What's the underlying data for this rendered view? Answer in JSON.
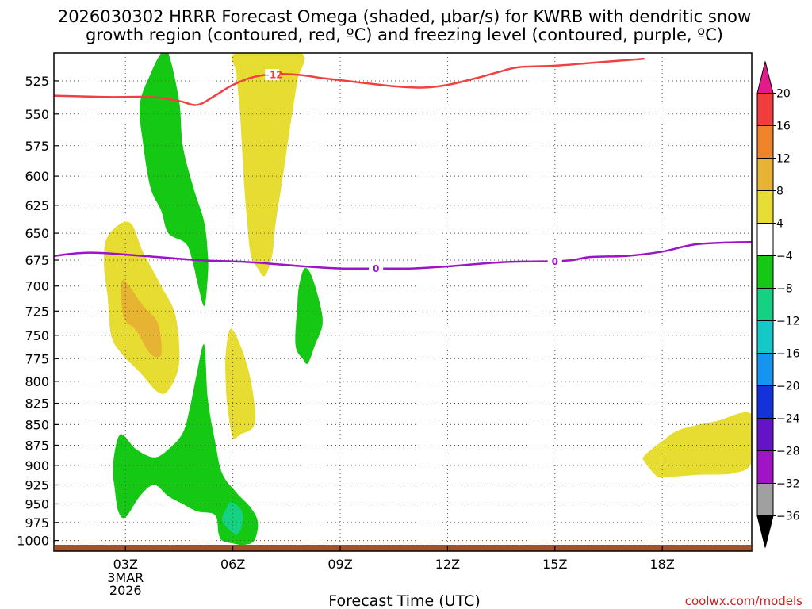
{
  "title_line1": "2026030302 HRRR Forecast Omega (shaded, μbar/s) for KWRB with dendritic snow",
  "title_line2": "growth region (contoured, red, ºC) and freezing level (contoured, purple, ºC)",
  "credit": "coolwx.com/models",
  "chart_data": {
    "type": "contour",
    "xlabel": "Forecast Time (UTC)",
    "ylabel": "",
    "x_axis": {
      "range_hours": [
        1,
        20.5
      ],
      "ticks": [
        {
          "hour": 3,
          "label": "03Z",
          "sub": [
            "3MAR",
            "2026"
          ]
        },
        {
          "hour": 6,
          "label": "06Z",
          "sub": []
        },
        {
          "hour": 9,
          "label": "09Z",
          "sub": []
        },
        {
          "hour": 12,
          "label": "12Z",
          "sub": []
        },
        {
          "hour": 15,
          "label": "15Z",
          "sub": []
        },
        {
          "hour": 18,
          "label": "18Z",
          "sub": []
        }
      ]
    },
    "y_axis": {
      "unit": "hPa",
      "scale": "log",
      "range": [
        1015,
        505
      ],
      "ticks": [
        525,
        550,
        575,
        600,
        625,
        650,
        675,
        700,
        725,
        750,
        775,
        800,
        825,
        850,
        875,
        900,
        925,
        950,
        975,
        1000
      ]
    },
    "grid": true,
    "colorbar": {
      "position": "right",
      "labels": [
        "20",
        "16",
        "12",
        "8",
        "4",
        "−4",
        "−8",
        "−12",
        "−16",
        "−20",
        "−24",
        "−28",
        "−32",
        "−36"
      ],
      "colors": [
        "#e31a8c",
        "#f03c3c",
        "#f08228",
        "#e6b432",
        "#e6dc32",
        "#ffffff",
        "#14c814",
        "#14d282",
        "#14c8c8",
        "#1496f0",
        "#1432dc",
        "#6414c8",
        "#a014c8",
        "#a0a0a0",
        "#000000"
      ]
    },
    "contours": [
      {
        "name": "dendritic -12",
        "color": "#f04040",
        "label": "−12",
        "points": [
          [
            1.0,
            536
          ],
          [
            2.5,
            537
          ],
          [
            3.7,
            537
          ],
          [
            4.5,
            540
          ],
          [
            5.0,
            543
          ],
          [
            5.5,
            536
          ],
          [
            6.0,
            528
          ],
          [
            6.6,
            522
          ],
          [
            7.3,
            520
          ],
          [
            8.0,
            521
          ],
          [
            8.5,
            523
          ],
          [
            9.5,
            526
          ],
          [
            10.5,
            529
          ],
          [
            11.3,
            530
          ],
          [
            12.0,
            528
          ],
          [
            12.8,
            523
          ],
          [
            13.5,
            518
          ],
          [
            14.0,
            515
          ],
          [
            15.0,
            514
          ],
          [
            16.0,
            512
          ],
          [
            17.0,
            510
          ],
          [
            17.5,
            509
          ]
        ]
      },
      {
        "name": "freezing level 0",
        "color": "#9b14c8",
        "label": "0",
        "points": [
          [
            1.0,
            671
          ],
          [
            2.0,
            668
          ],
          [
            3.5,
            671
          ],
          [
            5.0,
            675
          ],
          [
            6.5,
            677
          ],
          [
            8.0,
            681
          ],
          [
            9.0,
            683
          ],
          [
            10.0,
            683
          ],
          [
            11.0,
            683
          ],
          [
            12.0,
            681
          ],
          [
            13.5,
            677
          ],
          [
            15.0,
            676
          ],
          [
            15.5,
            675
          ],
          [
            16.0,
            672
          ],
          [
            17.0,
            671
          ],
          [
            18.0,
            667
          ],
          [
            19.0,
            660
          ],
          [
            20.5,
            658
          ]
        ]
      }
    ],
    "shaded": [
      {
        "value_band": "4 to 8",
        "color": "#e6dc32",
        "points": [
          [
            6.1,
            505
          ],
          [
            7.9,
            505
          ],
          [
            7.8,
            525
          ],
          [
            7.6,
            560
          ],
          [
            7.4,
            600
          ],
          [
            7.2,
            640
          ],
          [
            7.1,
            670
          ],
          [
            6.9,
            690
          ],
          [
            6.7,
            683
          ],
          [
            6.5,
            670
          ],
          [
            6.4,
            640
          ],
          [
            6.3,
            600
          ],
          [
            6.2,
            550
          ],
          [
            6.1,
            520
          ]
        ]
      },
      {
        "value_band": "4 to 8",
        "color": "#e6dc32",
        "points": [
          [
            2.5,
            653
          ],
          [
            3.1,
            640
          ],
          [
            3.5,
            668
          ],
          [
            4.0,
            700
          ],
          [
            4.4,
            730
          ],
          [
            4.5,
            780
          ],
          [
            4.2,
            810
          ],
          [
            3.9,
            812
          ],
          [
            3.4,
            790
          ],
          [
            2.9,
            770
          ],
          [
            2.6,
            750
          ],
          [
            2.5,
            710
          ],
          [
            2.4,
            680
          ]
        ]
      },
      {
        "value_band": "8 to 12",
        "color": "#e6b432",
        "points": [
          [
            2.9,
            695
          ],
          [
            3.1,
            700
          ],
          [
            3.5,
            720
          ],
          [
            3.9,
            737
          ],
          [
            4.0,
            770
          ],
          [
            3.7,
            770
          ],
          [
            3.3,
            745
          ],
          [
            3.0,
            735
          ],
          [
            2.9,
            720
          ]
        ]
      },
      {
        "value_band": "4 to 8",
        "color": "#e6dc32",
        "points": [
          [
            5.95,
            743
          ],
          [
            6.3,
            770
          ],
          [
            6.55,
            810
          ],
          [
            6.6,
            850
          ],
          [
            6.2,
            862
          ],
          [
            6.0,
            865
          ],
          [
            5.85,
            830
          ],
          [
            5.8,
            800
          ],
          [
            5.8,
            770
          ]
        ]
      },
      {
        "value_band": "4 to 8",
        "color": "#e6dc32",
        "points": [
          [
            17.5,
            888
          ],
          [
            18.0,
            870
          ],
          [
            18.5,
            856
          ],
          [
            19.5,
            846
          ],
          [
            20.5,
            838
          ],
          [
            20.5,
            895
          ],
          [
            20.0,
            910
          ],
          [
            19.0,
            912
          ],
          [
            18.0,
            915
          ],
          [
            17.8,
            912
          ],
          [
            17.5,
            895
          ]
        ]
      },
      {
        "value_band": "-8 to -4",
        "color": "#14c814",
        "points": [
          [
            3.4,
            543
          ],
          [
            3.7,
            520
          ],
          [
            4.0,
            505
          ],
          [
            4.2,
            505
          ],
          [
            4.5,
            540
          ],
          [
            4.6,
            575
          ],
          [
            4.9,
            610
          ],
          [
            5.2,
            640
          ],
          [
            5.3,
            670
          ],
          [
            5.3,
            690
          ],
          [
            5.2,
            720
          ],
          [
            5.0,
            695
          ],
          [
            4.9,
            680
          ],
          [
            4.7,
            660
          ],
          [
            4.2,
            650
          ],
          [
            4.0,
            630
          ],
          [
            3.7,
            610
          ],
          [
            3.5,
            575
          ]
        ]
      },
      {
        "value_band": "-8 to -4",
        "color": "#14c814",
        "points": [
          [
            8.0,
            683
          ],
          [
            8.2,
            690
          ],
          [
            8.45,
            720
          ],
          [
            8.5,
            740
          ],
          [
            8.3,
            760
          ],
          [
            8.1,
            780
          ],
          [
            7.95,
            775
          ],
          [
            7.75,
            760
          ],
          [
            7.8,
            720
          ],
          [
            7.85,
            700
          ]
        ]
      },
      {
        "value_band": "-8 to -4",
        "color": "#14c814",
        "points": [
          [
            2.85,
            862
          ],
          [
            3.3,
            880
          ],
          [
            3.8,
            890
          ],
          [
            4.2,
            880
          ],
          [
            4.6,
            860
          ],
          [
            4.8,
            830
          ],
          [
            5.0,
            790
          ],
          [
            5.2,
            760
          ],
          [
            5.3,
            820
          ],
          [
            5.5,
            870
          ],
          [
            5.7,
            910
          ],
          [
            6.1,
            935
          ],
          [
            6.5,
            955
          ],
          [
            6.7,
            975
          ],
          [
            6.6,
            1000
          ],
          [
            6.3,
            1006
          ],
          [
            6.0,
            1004
          ],
          [
            5.7,
            1000
          ],
          [
            5.6,
            990
          ],
          [
            5.5,
            965
          ],
          [
            5.0,
            960
          ],
          [
            4.6,
            950
          ],
          [
            4.2,
            940
          ],
          [
            3.8,
            925
          ],
          [
            3.4,
            940
          ],
          [
            3.0,
            968
          ],
          [
            2.8,
            960
          ],
          [
            2.7,
            930
          ],
          [
            2.65,
            900
          ]
        ]
      },
      {
        "value_band": "-12 to -8",
        "color": "#14d282",
        "points": [
          [
            5.9,
            950
          ],
          [
            6.0,
            948
          ],
          [
            6.25,
            960
          ],
          [
            6.25,
            980
          ],
          [
            6.1,
            992
          ],
          [
            5.9,
            985
          ],
          [
            5.7,
            970
          ]
        ]
      }
    ],
    "ground": {
      "color": "#a0522d"
    }
  }
}
